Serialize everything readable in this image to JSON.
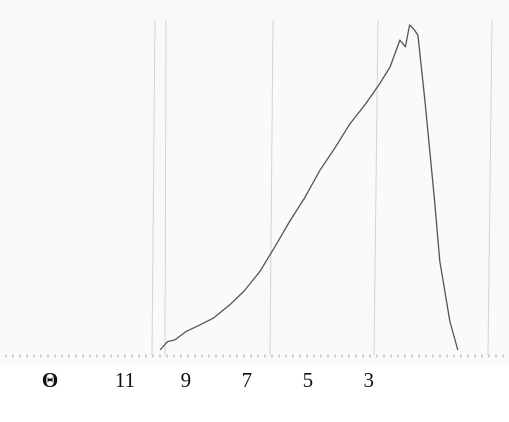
{
  "chart_data": {
    "type": "line",
    "x_label": "Θ",
    "x": [
      9.85,
      9.6,
      9.36,
      9.0,
      8.54,
      8.1,
      7.56,
      7.1,
      6.57,
      6.1,
      5.59,
      5.1,
      4.61,
      4.1,
      3.62,
      3.1,
      2.64,
      2.3,
      1.98,
      1.8,
      1.66,
      1.5,
      1.39,
      1.16,
      0.84,
      0.67,
      0.34,
      0.08
    ],
    "series": [
      {
        "color": "#555555",
        "values": [
          1.5,
          4,
          4.5,
          7,
          9,
          11,
          15,
          19,
          25,
          32,
          40,
          47,
          55,
          62,
          69,
          75,
          81,
          86,
          94,
          92,
          98.5,
          97,
          95.5,
          76,
          46,
          28,
          10,
          1.5
        ]
      }
    ],
    "xlim": [
      15.1,
      -1.6
    ],
    "xticks": [
      11,
      9,
      7,
      5,
      3
    ],
    "ylim": [
      0,
      100
    ]
  }
}
